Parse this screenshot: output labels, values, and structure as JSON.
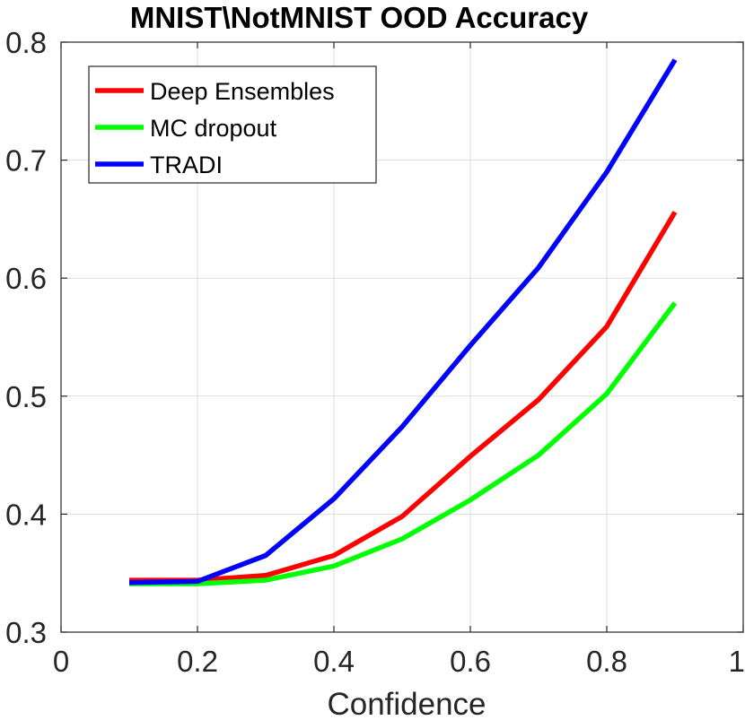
{
  "chart_data": {
    "type": "line",
    "title": "MNIST\\NotMNIST OOD Accuracy",
    "xlabel": "Confidence",
    "ylabel": "",
    "xlim": [
      0,
      1
    ],
    "ylim": [
      0.3,
      0.8
    ],
    "xticks": [
      0,
      0.2,
      0.4,
      0.6,
      0.8,
      1
    ],
    "xtick_labels": [
      "0",
      "0.2",
      "0.4",
      "0.6",
      "0.8",
      "1"
    ],
    "yticks": [
      0.3,
      0.4,
      0.5,
      0.6,
      0.7,
      0.8
    ],
    "ytick_labels": [
      "0.3",
      "0.4",
      "0.5",
      "0.6",
      "0.7",
      "0.8"
    ],
    "grid": true,
    "legend_location": "top-left",
    "x": [
      0.1,
      0.2,
      0.3,
      0.4,
      0.5,
      0.6,
      0.7,
      0.8,
      0.9
    ],
    "series": [
      {
        "name": "Deep Ensembles",
        "color": "#ff0000",
        "values": [
          0.344,
          0.344,
          0.348,
          0.365,
          0.398,
          0.449,
          0.497,
          0.559,
          0.656
        ]
      },
      {
        "name": "MC dropout",
        "color": "#00ff00",
        "values": [
          0.341,
          0.341,
          0.344,
          0.356,
          0.379,
          0.412,
          0.45,
          0.502,
          0.579
        ]
      },
      {
        "name": "TRADI",
        "color": "#0000ff",
        "values": [
          0.342,
          0.343,
          0.365,
          0.413,
          0.474,
          0.543,
          0.609,
          0.69,
          0.785
        ]
      }
    ]
  }
}
